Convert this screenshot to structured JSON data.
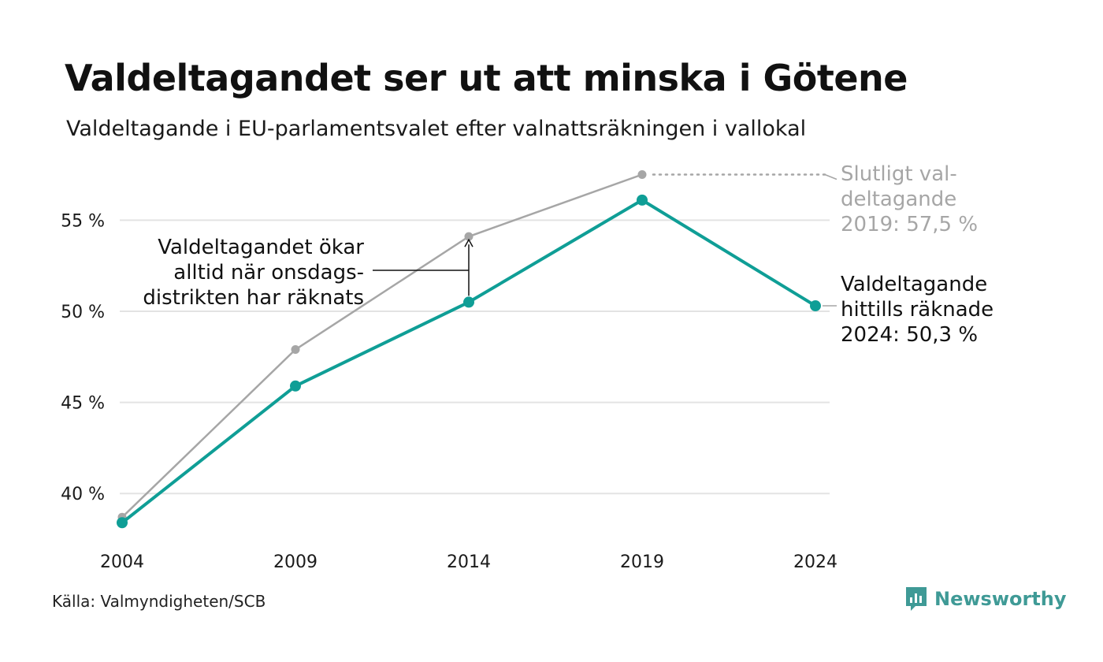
{
  "title": "Valdeltagandet ser ut att minska i Götene",
  "subtitle": "Valdeltagande i EU-parlamentsvalet efter valnattsräkningen i vallokal",
  "source": "Källa: Valmyndigheten/SCB",
  "brand": {
    "name": "Newsworthy",
    "icon": "newsworthy-logo-icon"
  },
  "colors": {
    "counted": "#0f9e96",
    "final": "#a6a6a6",
    "grid": "#e3e3e3",
    "text": "#1a1a1a"
  },
  "chart_data": {
    "type": "line",
    "x": [
      2004,
      2009,
      2014,
      2019,
      2024
    ],
    "ylim": [
      38,
      57.5
    ],
    "yticks": [
      40,
      45,
      50,
      55
    ],
    "ytick_labels": [
      "40 %",
      "45 %",
      "50 %",
      "55 %"
    ],
    "xtick_labels": [
      "2004",
      "2009",
      "2014",
      "2019",
      "2024"
    ],
    "grid": true,
    "series": [
      {
        "values": [
          38.7,
          47.9,
          54.1,
          57.5,
          null
        ]
      },
      {
        "values": [
          38.4,
          45.9,
          50.5,
          56.1,
          50.3
        ]
      }
    ],
    "annotations": [
      {
        "lines": [
          "Valdeltagandet ökar",
          "alltid när onsdags-",
          "distrikten har räknats"
        ]
      },
      {
        "lines": [
          "Slutligt val-",
          "deltagande",
          "2019: 57,5 %"
        ]
      },
      {
        "lines": [
          "Valdeltagande",
          "hittills räknade",
          "2024: 50,3 %"
        ]
      }
    ]
  }
}
